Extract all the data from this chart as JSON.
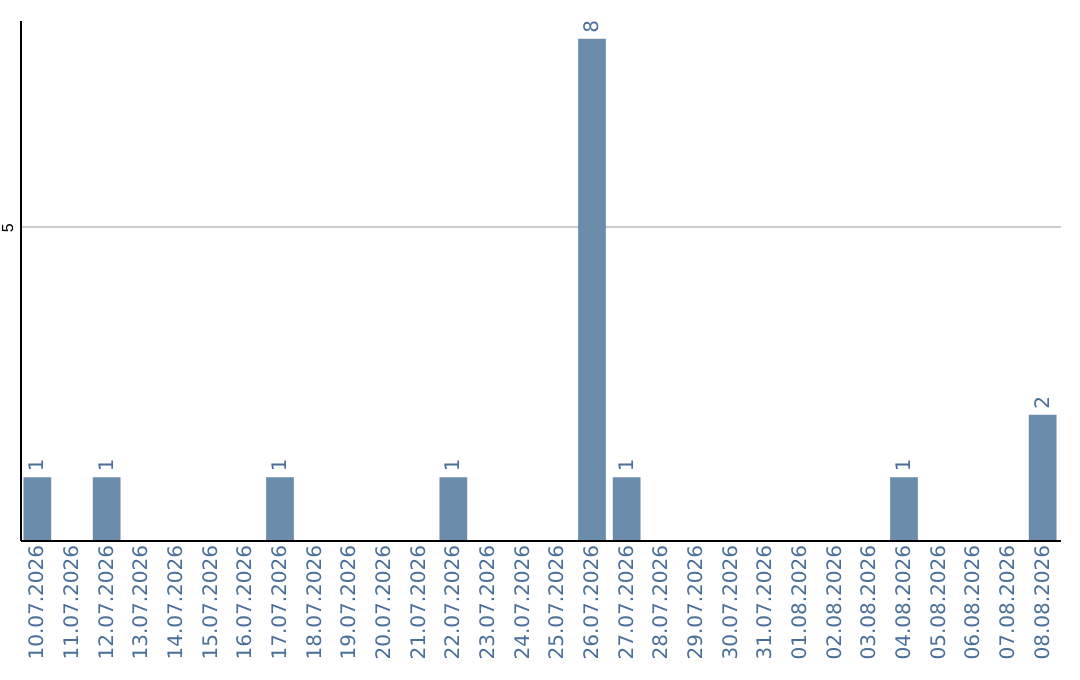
{
  "chart_data": {
    "type": "bar",
    "categories": [
      "10.07.2026",
      "11.07.2026",
      "12.07.2026",
      "13.07.2026",
      "14.07.2026",
      "15.07.2026",
      "16.07.2026",
      "17.07.2026",
      "18.07.2026",
      "19.07.2026",
      "20.07.2026",
      "21.07.2026",
      "22.07.2026",
      "23.07.2026",
      "24.07.2026",
      "25.07.2026",
      "26.07.2026",
      "27.07.2026",
      "28.07.2026",
      "29.07.2026",
      "30.07.2026",
      "31.07.2026",
      "01.08.2026",
      "02.08.2026",
      "03.08.2026",
      "04.08.2026",
      "05.08.2026",
      "06.08.2026",
      "07.08.2026",
      "08.08.2026"
    ],
    "values": [
      1,
      null,
      1,
      null,
      null,
      null,
      null,
      1,
      null,
      null,
      null,
      null,
      1,
      null,
      null,
      null,
      8,
      1,
      null,
      null,
      null,
      null,
      null,
      null,
      null,
      1,
      null,
      null,
      null,
      2
    ],
    "color": "#6b8cab",
    "ylim": [
      0,
      8.3
    ],
    "yticks": [
      5
    ],
    "grid": "y",
    "data_labels": true
  }
}
